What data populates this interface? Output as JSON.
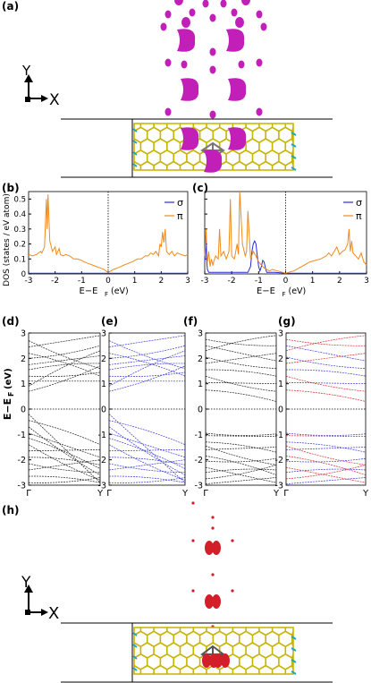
{
  "panels": {
    "a": "(a)",
    "b": "(b)",
    "c": "(c)",
    "d": "(d)",
    "e": "(e)",
    "f": "(f)",
    "g": "(g)",
    "h": "(h)"
  },
  "axes_glyph": {
    "y": "Y",
    "x": "X"
  },
  "colors": {
    "sigma": "#2a2ad4",
    "pi": "#f08a1c",
    "iso_a": "#c21fb8",
    "iso_h": "#d21f2a",
    "lattice": "#c6b400",
    "band_black": "#222222",
    "band_blue": "#3a3ad8",
    "band_red": "#d82a2a"
  },
  "chart_data": [
    {
      "id": "b",
      "type": "line",
      "xlabel": "E−E",
      "xlabel_sub": "F",
      "xlabel_unit": " (eV)",
      "ylabel": "DOS (states / eV atom)",
      "xlim": [
        -3,
        3
      ],
      "ylim": [
        0,
        0.55
      ],
      "xticks": [
        -3,
        -2,
        -1,
        0,
        1,
        2,
        3
      ],
      "yticks": [
        0,
        0.1,
        0.2,
        0.3,
        0.4,
        0.5
      ],
      "legend": [
        "σ",
        "π"
      ],
      "legend_position": "top-right",
      "series": [
        {
          "name": "σ",
          "color": "#2a2ad4",
          "x": [
            -3,
            3
          ],
          "y": [
            0.005,
            0.005
          ]
        },
        {
          "name": "π",
          "color": "#f08a1c",
          "x": [
            -3,
            -2.85,
            -2.7,
            -2.55,
            -2.5,
            -2.4,
            -2.33,
            -2.3,
            -2.27,
            -2.2,
            -2.1,
            -2.0,
            -1.95,
            -1.85,
            -1.8,
            -1.7,
            -1.6,
            -1.45,
            -1.3,
            -1.15,
            -1.0,
            -0.9,
            -0.75,
            -0.6,
            -0.45,
            -0.3,
            -0.15,
            -0.05,
            0,
            0.05,
            0.2,
            0.35,
            0.5,
            0.6,
            0.75,
            0.9,
            1.0,
            1.1,
            1.25,
            1.4,
            1.5,
            1.6,
            1.7,
            1.8,
            1.9,
            1.95,
            2.0,
            2.05,
            2.1,
            2.15,
            2.2,
            2.3,
            2.4,
            2.5,
            2.6,
            2.75,
            2.9,
            3.0
          ],
          "y": [
            0.13,
            0.12,
            0.13,
            0.15,
            0.14,
            0.18,
            0.5,
            0.3,
            0.53,
            0.22,
            0.15,
            0.18,
            0.13,
            0.17,
            0.13,
            0.12,
            0.13,
            0.12,
            0.1,
            0.1,
            0.09,
            0.08,
            0.07,
            0.06,
            0.05,
            0.04,
            0.03,
            0.015,
            0.01,
            0.015,
            0.03,
            0.04,
            0.05,
            0.06,
            0.07,
            0.08,
            0.09,
            0.1,
            0.1,
            0.12,
            0.12,
            0.14,
            0.13,
            0.15,
            0.12,
            0.2,
            0.18,
            0.28,
            0.21,
            0.3,
            0.15,
            0.13,
            0.15,
            0.12,
            0.14,
            0.13,
            0.12,
            0.13
          ]
        }
      ]
    },
    {
      "id": "c",
      "type": "line",
      "xlabel": "E−E",
      "xlabel_sub": "F",
      "xlabel_unit": " (eV)",
      "xlim": [
        -3,
        3
      ],
      "ylim": [
        0,
        0.55
      ],
      "xticks": [
        -3,
        -2,
        -1,
        0,
        1,
        2,
        3
      ],
      "yticks": [
        0,
        0.1,
        0.2,
        0.3,
        0.4,
        0.5
      ],
      "legend": [
        "σ",
        "π"
      ],
      "legend_position": "top-right",
      "series": [
        {
          "name": "σ",
          "color": "#2a2ad4",
          "x": [
            -3,
            -2.97,
            -2.94,
            -2.9,
            -2.85,
            -2.7,
            -2.5,
            -2.3,
            -2.1,
            -1.9,
            -1.7,
            -1.5,
            -1.4,
            -1.3,
            -1.25,
            -1.2,
            -1.15,
            -1.1,
            -1.05,
            -1.0,
            -0.95,
            -0.9,
            -0.85,
            -0.8,
            -0.75,
            -0.7,
            -0.6,
            -0.4,
            0,
            3
          ],
          "y": [
            0.08,
            0.24,
            0.12,
            0.03,
            0.01,
            0.01,
            0.01,
            0.01,
            0.01,
            0.01,
            0.01,
            0.01,
            0.01,
            0.05,
            0.15,
            0.2,
            0.22,
            0.2,
            0.12,
            0.05,
            0.02,
            0.05,
            0.09,
            0.08,
            0.04,
            0.01,
            0.01,
            0.01,
            0.005,
            0.005
          ]
        },
        {
          "name": "π",
          "color": "#f08a1c",
          "x": [
            -3,
            -2.95,
            -2.9,
            -2.85,
            -2.8,
            -2.75,
            -2.7,
            -2.6,
            -2.5,
            -2.45,
            -2.4,
            -2.3,
            -2.2,
            -2.1,
            -2.05,
            -2.0,
            -1.9,
            -1.8,
            -1.75,
            -1.7,
            -1.6,
            -1.5,
            -1.45,
            -1.4,
            -1.3,
            -1.2,
            -1.1,
            -1.0,
            -0.9,
            -0.8,
            -0.7,
            -0.6,
            -0.5,
            -0.3,
            -0.1,
            0,
            0.1,
            0.3,
            0.5,
            0.7,
            0.9,
            1.1,
            1.3,
            1.5,
            1.6,
            1.7,
            1.8,
            1.9,
            2.0,
            2.1,
            2.2,
            2.3,
            2.35,
            2.4,
            2.45,
            2.5,
            2.6,
            2.7,
            2.8,
            2.9,
            3.0
          ],
          "y": [
            0.12,
            0.3,
            0.08,
            0.15,
            0.05,
            0.1,
            0.06,
            0.12,
            0.1,
            0.3,
            0.12,
            0.15,
            0.1,
            0.15,
            0.5,
            0.12,
            0.1,
            0.2,
            0.13,
            0.55,
            0.2,
            0.12,
            0.15,
            0.42,
            0.1,
            0.15,
            0.12,
            0.08,
            0.06,
            0.04,
            0.03,
            0.02,
            0.03,
            0.02,
            0.01,
            0.005,
            0.01,
            0.02,
            0.04,
            0.06,
            0.08,
            0.09,
            0.1,
            0.12,
            0.14,
            0.12,
            0.15,
            0.18,
            0.13,
            0.15,
            0.16,
            0.2,
            0.3,
            0.15,
            0.22,
            0.14,
            0.12,
            0.1,
            0.14,
            0.08,
            0.06
          ]
        }
      ]
    },
    {
      "id": "d",
      "type": "line",
      "ylabel": "E−E",
      "ylabel_sub": "F",
      "ylabel_unit": " (eV)",
      "ylim": [
        -3,
        3
      ],
      "yticks": [
        -3,
        -2,
        -1,
        0,
        1,
        2,
        3
      ],
      "xticks_labels": [
        "Γ",
        "Y"
      ],
      "line_color": "#222222",
      "bands_start": [
        2.7,
        2.45,
        2.2,
        2.0,
        1.75,
        1.55,
        1.3,
        1.1,
        0.9,
        0.7,
        -0.2,
        -0.45,
        -0.7,
        -0.95,
        -1.15,
        -1.4,
        -1.65,
        -1.9,
        -2.15,
        -2.4,
        -2.65,
        -2.9
      ],
      "bands_end": [
        1.6,
        2.9,
        1.3,
        2.5,
        2.1,
        1.8,
        1.45,
        1.1,
        2.3,
        1.7,
        -2.9,
        -1.4,
        -2.6,
        -1.9,
        -2.35,
        -2.8,
        -1.6,
        -2.2,
        -2.5,
        -2.0,
        -2.9,
        -2.7
      ]
    },
    {
      "id": "e",
      "type": "line",
      "ylim": [
        -3,
        3
      ],
      "yticks": [
        -3,
        -2,
        -1,
        0,
        1,
        2,
        3
      ],
      "xticks_labels": [
        "Γ",
        "Y"
      ],
      "line_color": "#3a3ad8",
      "bands_start": [
        2.7,
        2.45,
        2.2,
        2.0,
        1.75,
        1.55,
        1.3,
        1.1,
        0.9,
        0.7,
        -0.2,
        -0.45,
        -0.7,
        -0.95,
        -1.15,
        -1.4,
        -1.65,
        -1.9,
        -2.15,
        -2.4,
        -2.65,
        -2.9
      ],
      "bands_end": [
        1.6,
        2.9,
        1.3,
        2.5,
        2.1,
        1.8,
        1.45,
        1.1,
        2.3,
        1.7,
        -2.9,
        -1.4,
        -2.6,
        -1.9,
        -2.35,
        -2.8,
        -1.6,
        -2.2,
        -2.5,
        -2.0,
        -2.9,
        -2.7
      ]
    },
    {
      "id": "f",
      "type": "line",
      "ylim": [
        -3,
        3
      ],
      "yticks": [
        -3,
        -2,
        -1,
        0,
        1,
        2,
        3
      ],
      "xticks_labels": [
        "Γ",
        "Y"
      ],
      "line_color": "#222222",
      "bands_start": [
        2.75,
        2.5,
        2.3,
        2.05,
        1.8,
        1.55,
        1.3,
        1.05,
        0.75,
        -0.95,
        -1.05,
        -1.3,
        -1.45,
        -1.6,
        -1.85,
        -2.05,
        -2.3,
        -2.5,
        -2.75,
        -2.95
      ],
      "bands_end": [
        2.5,
        1.9,
        2.9,
        1.6,
        2.2,
        1.3,
        0.7,
        1.0,
        0.3,
        -0.98,
        -1.08,
        -1.7,
        -2.2,
        -1.5,
        -2.6,
        -1.95,
        -2.9,
        -2.4,
        -2.2,
        -2.7
      ]
    },
    {
      "id": "g",
      "type": "line",
      "ylim": [
        -3,
        3
      ],
      "yticks": [
        -3,
        -2,
        -1,
        0,
        1,
        2,
        3
      ],
      "xticks_labels": [
        "Γ",
        "Y"
      ],
      "line_color": "#d82a2a",
      "line_color_2": "#3a3ad8",
      "bands_start": [
        2.75,
        2.5,
        2.3,
        2.05,
        1.8,
        1.55,
        1.3,
        1.05,
        0.75,
        -0.95,
        -1.05,
        -1.3,
        -1.45,
        -1.6,
        -1.85,
        -2.05,
        -2.3,
        -2.5,
        -2.75,
        -2.95
      ],
      "bands_end": [
        2.5,
        1.9,
        2.9,
        1.6,
        2.2,
        1.3,
        0.7,
        1.0,
        0.3,
        -0.98,
        -1.08,
        -1.7,
        -2.2,
        -1.5,
        -2.6,
        -1.95,
        -2.9,
        -2.4,
        -2.2,
        -2.7
      ]
    }
  ]
}
